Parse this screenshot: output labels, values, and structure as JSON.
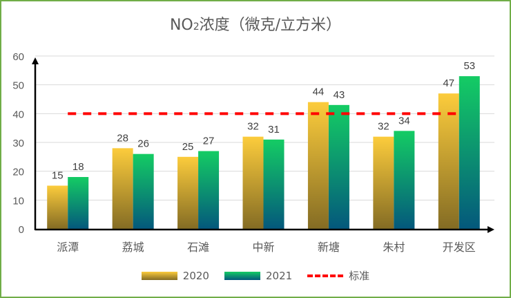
{
  "chart_data": {
    "type": "bar",
    "title": "NO2浓度（微克/立方米）",
    "title_parts": {
      "main1": "NO",
      "sub": "2",
      "main2": "浓度（微克/立方米）"
    },
    "categories": [
      "派潭",
      "荔城",
      "石滩",
      "中新",
      "新塘",
      "朱村",
      "开发区"
    ],
    "series": [
      {
        "name": "2020",
        "values": [
          15,
          28,
          25,
          32,
          44,
          32,
          47
        ],
        "color_top": "#fccc3c",
        "color_bottom": "#846c24"
      },
      {
        "name": "2021",
        "values": [
          18,
          26,
          27,
          31,
          43,
          34,
          53
        ],
        "color_top": "#14cc64",
        "color_bottom": "#04587c"
      }
    ],
    "reference_line": {
      "name": "标准",
      "value": 40,
      "color": "#ff0000",
      "style": "dashed"
    },
    "ylim": [
      0,
      60
    ],
    "yticks": [
      0,
      10,
      20,
      30,
      40,
      50,
      60
    ],
    "grid": true,
    "legend": "bottom",
    "xlabel": "",
    "ylabel": ""
  }
}
